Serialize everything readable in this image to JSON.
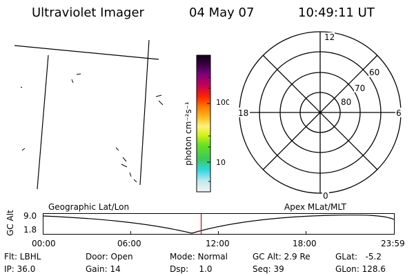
{
  "header": {
    "title": "Ultraviolet Imager",
    "date": "04 May 07",
    "time": "10:49:11 UT"
  },
  "colorbar": {
    "unit_label": "photon cm⁻²s⁻¹",
    "ticks": [
      "100",
      "10"
    ]
  },
  "polar_plot": {
    "mlt_labels": {
      "top": "12",
      "right": "6",
      "bottom": "0",
      "left": "18"
    },
    "lat_labels": [
      "60",
      "70",
      "80"
    ]
  },
  "timeline": {
    "left_label": "Geographic Lat/Lon",
    "right_label": "Apex MLat/MLT",
    "y_axis_label": "GC Alt",
    "y_ticks": [
      "9.0",
      "1.8"
    ],
    "x_ticks": [
      "00:00",
      "06:00",
      "12:00",
      "18:00",
      "23:59"
    ],
    "current_time_fraction": 0.45,
    "marker_color": "#e00000"
  },
  "status": {
    "flt": "Flt: LBHL",
    "ip": "IP: 36.0",
    "door": "Door: Open",
    "gain": "Gain: 14",
    "mode": "Mode: Normal",
    "dsp": "Dsp:    1.0",
    "gc_alt": "GC Alt: 2.9 Re",
    "seq": "Seq: 39",
    "glat": "GLat:   -5.2",
    "glon": "GLon: 128.6"
  }
}
